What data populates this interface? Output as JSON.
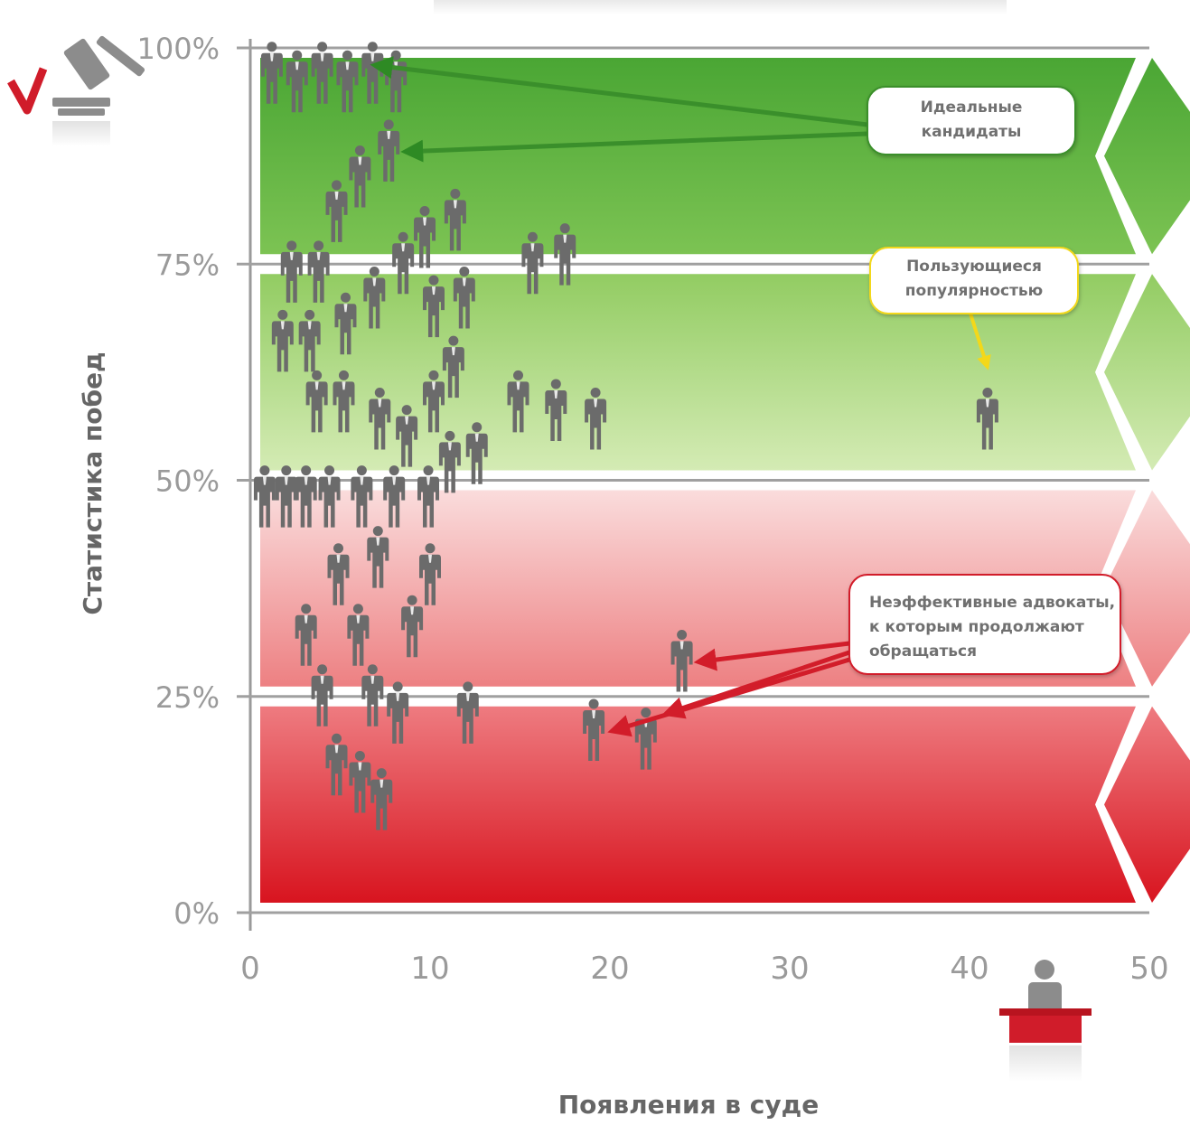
{
  "chart_data": {
    "type": "scatter",
    "xlabel": "Появления в суде",
    "ylabel": "Статистика побед",
    "xlim": [
      0,
      50
    ],
    "ylim": [
      0,
      100
    ],
    "x_ticks": [
      "0",
      "10",
      "20",
      "30",
      "40",
      "50"
    ],
    "y_ticks": [
      "0%",
      "25%",
      "50%",
      "75%",
      "100%"
    ],
    "bands": [
      {
        "from": 75,
        "to": 100,
        "color": "#58ae3e"
      },
      {
        "from": 50,
        "to": 75,
        "color": "#a9d77e"
      },
      {
        "from": 25,
        "to": 50,
        "color": "#ee8c8c"
      },
      {
        "from": 0,
        "to": 25,
        "color": "#dc1a2a"
      }
    ],
    "points": [
      {
        "x": 1.2,
        "y": 97
      },
      {
        "x": 2.6,
        "y": 96
      },
      {
        "x": 4.0,
        "y": 97
      },
      {
        "x": 5.4,
        "y": 96
      },
      {
        "x": 6.8,
        "y": 97
      },
      {
        "x": 8.1,
        "y": 96
      },
      {
        "x": 7.7,
        "y": 88
      },
      {
        "x": 6.1,
        "y": 85
      },
      {
        "x": 4.8,
        "y": 81
      },
      {
        "x": 9.7,
        "y": 78
      },
      {
        "x": 11.4,
        "y": 80
      },
      {
        "x": 8.5,
        "y": 75
      },
      {
        "x": 2.3,
        "y": 74
      },
      {
        "x": 3.8,
        "y": 74
      },
      {
        "x": 15.7,
        "y": 75
      },
      {
        "x": 17.5,
        "y": 76
      },
      {
        "x": 6.9,
        "y": 71
      },
      {
        "x": 11.9,
        "y": 71
      },
      {
        "x": 10.2,
        "y": 70
      },
      {
        "x": 5.3,
        "y": 68
      },
      {
        "x": 1.8,
        "y": 66
      },
      {
        "x": 3.3,
        "y": 66
      },
      {
        "x": 11.3,
        "y": 63
      },
      {
        "x": 3.7,
        "y": 59
      },
      {
        "x": 5.2,
        "y": 59
      },
      {
        "x": 7.2,
        "y": 57
      },
      {
        "x": 10.2,
        "y": 59
      },
      {
        "x": 8.7,
        "y": 55
      },
      {
        "x": 11.1,
        "y": 52
      },
      {
        "x": 12.6,
        "y": 53
      },
      {
        "x": 14.9,
        "y": 59
      },
      {
        "x": 17.0,
        "y": 58
      },
      {
        "x": 19.2,
        "y": 57
      },
      {
        "x": 41.0,
        "y": 57
      },
      {
        "x": 0.8,
        "y": 48
      },
      {
        "x": 2.0,
        "y": 48
      },
      {
        "x": 3.1,
        "y": 48
      },
      {
        "x": 4.4,
        "y": 48
      },
      {
        "x": 6.2,
        "y": 48
      },
      {
        "x": 8.0,
        "y": 48
      },
      {
        "x": 9.9,
        "y": 48
      },
      {
        "x": 7.1,
        "y": 41
      },
      {
        "x": 4.9,
        "y": 39
      },
      {
        "x": 10.0,
        "y": 39
      },
      {
        "x": 3.1,
        "y": 32
      },
      {
        "x": 6.0,
        "y": 32
      },
      {
        "x": 9.0,
        "y": 33
      },
      {
        "x": 24.0,
        "y": 29
      },
      {
        "x": 4.0,
        "y": 25
      },
      {
        "x": 6.8,
        "y": 25
      },
      {
        "x": 8.2,
        "y": 23
      },
      {
        "x": 12.1,
        "y": 23
      },
      {
        "x": 19.1,
        "y": 21
      },
      {
        "x": 22.0,
        "y": 20
      },
      {
        "x": 4.8,
        "y": 17
      },
      {
        "x": 6.1,
        "y": 15
      },
      {
        "x": 7.3,
        "y": 13
      }
    ],
    "annotations": [
      {
        "text": [
          "Идеальные",
          "кандидаты"
        ],
        "color": "#3a8f2b",
        "targets": [
          {
            "x": 6.0,
            "y": 98
          },
          {
            "x": 7.7,
            "y": 88
          }
        ]
      },
      {
        "text": [
          "Пользующиеся",
          "популярностью"
        ],
        "color": "#f3d81a",
        "targets": [
          {
            "x": 41.0,
            "y": 62
          }
        ]
      },
      {
        "text": [
          "Неэффективные адвокаты,",
          "к которым продолжают",
          "обращаться"
        ],
        "color": "#d21d2a",
        "targets": [
          {
            "x": 24.0,
            "y": 29
          },
          {
            "x": 22.2,
            "y": 23
          },
          {
            "x": 19.2,
            "y": 21
          }
        ]
      }
    ]
  },
  "colors": {
    "person": "#6b6b6b",
    "axis": "#9a9a9a",
    "check": "#d01c2a",
    "podium": "#d01c2a"
  },
  "icons": {
    "top_left": "gavel-icon",
    "bottom_right": "courtroom-podium-icon"
  }
}
